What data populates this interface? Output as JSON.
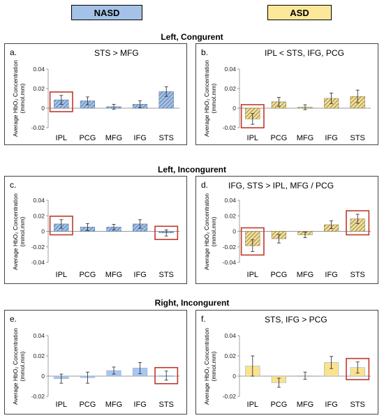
{
  "legend": [
    {
      "label": "NASD",
      "color": "#a4c2e8"
    },
    {
      "label": "ASD",
      "color": "#fde89a"
    }
  ],
  "sections": [
    "Left, Congurent",
    "Left, Incongurent",
    "Right, Incongurent"
  ],
  "colors": {
    "nasd_fill": "#a4c2e8",
    "nasd_hatch": "#4f6e9a",
    "asd_fill": "#f2df95",
    "asd_hatch": "#807140",
    "right_nasd_fill": "#a9c6ee",
    "right_asd_fill": "#fbe28e",
    "highlight": "#c0392b"
  },
  "chart_data": [
    {
      "type": "bar",
      "label": "a.",
      "title": "STS > MFG",
      "group": "NASD",
      "pattern": "hatch",
      "ylabel": "Average HbO₂ Concentration (mmol.mm)",
      "categories": [
        "IPL",
        "PCG",
        "MFG",
        "IFG",
        "STS"
      ],
      "values": [
        0.0085,
        0.0075,
        0.0015,
        0.004,
        0.017
      ],
      "errors": [
        0.0045,
        0.004,
        0.0025,
        0.0035,
        0.005
      ],
      "highlight": [
        "IPL"
      ],
      "ylim": [
        -0.02,
        0.04
      ],
      "yticks": [
        0.04,
        0.02,
        0,
        -0.02
      ],
      "ytick_labels": [
        "0.04",
        "0.02",
        "0",
        "-0.02"
      ]
    },
    {
      "type": "bar",
      "label": "b.",
      "title": "IPL < STS, IFG, PCG",
      "group": "ASD",
      "pattern": "hatch",
      "ylabel": "Average HbO₂ Concentration (mmol.mm)",
      "categories": [
        "IPL",
        "PCG",
        "MFG",
        "IFG",
        "STS"
      ],
      "values": [
        -0.011,
        0.0065,
        0.001,
        0.01,
        0.012
      ],
      "errors": [
        0.0055,
        0.0045,
        0.0025,
        0.0055,
        0.0065
      ],
      "highlight": [
        "IPL"
      ],
      "ylim": [
        -0.02,
        0.04
      ],
      "yticks": [
        0.04,
        0.02,
        0,
        -0.02
      ],
      "ytick_labels": [
        "0.04",
        "0.02",
        "0",
        "-0.02"
      ]
    },
    {
      "type": "bar",
      "label": "c.",
      "title": "",
      "group": "NASD",
      "pattern": "hatch",
      "ylabel": "Average HbO₂ Concentration (mmol.mm)",
      "categories": [
        "IPL",
        "PCG",
        "MFG",
        "IFG",
        "STS"
      ],
      "values": [
        0.0095,
        0.0055,
        0.0055,
        0.0095,
        -0.002
      ],
      "errors": [
        0.0055,
        0.0045,
        0.0035,
        0.0055,
        0.004
      ],
      "highlight": [
        "IPL",
        "STS"
      ],
      "ylim": [
        -0.04,
        0.04
      ],
      "yticks": [
        0.04,
        0.02,
        0,
        -0.02,
        -0.04
      ],
      "ytick_labels": [
        "0.04",
        "0.02",
        "0",
        "-0.02",
        "-0.04"
      ]
    },
    {
      "type": "bar",
      "label": "d.",
      "title": "IFG, STS > IPL, MFG / PCG",
      "group": "ASD",
      "pattern": "hatch",
      "ylabel": "Average HbO₂ Concentration (mmol.mm)",
      "categories": [
        "IPL",
        "PCG",
        "MFG",
        "IFG",
        "STS"
      ],
      "values": [
        -0.0185,
        -0.0095,
        -0.0045,
        0.0085,
        0.016
      ],
      "errors": [
        0.0075,
        0.0055,
        0.0035,
        0.005,
        0.006
      ],
      "highlight": [
        "IPL",
        "STS"
      ],
      "ylim": [
        -0.04,
        0.04
      ],
      "yticks": [
        0.04,
        0.02,
        0,
        -0.02,
        -0.04
      ],
      "ytick_labels": [
        "0.04",
        "0.02",
        "0",
        "-0.02",
        "-0.04"
      ]
    },
    {
      "type": "bar",
      "label": "e.",
      "title": "",
      "group": "NASD",
      "pattern": "solid",
      "ylabel": "Average HbO₂ Concentration (mmol.mm)",
      "categories": [
        "IPL",
        "PCG",
        "MFG",
        "IFG",
        "STS"
      ],
      "values": [
        -0.0025,
        -0.0015,
        0.0055,
        0.008,
        0.0005
      ],
      "errors": [
        0.0045,
        0.0055,
        0.0035,
        0.0055,
        0.0045
      ],
      "highlight": [
        "STS"
      ],
      "ylim": [
        -0.02,
        0.04
      ],
      "yticks": [
        0.04,
        0.02,
        0,
        -0.02
      ],
      "ytick_labels": [
        "0.04",
        "0.02",
        "0",
        "-0.02"
      ]
    },
    {
      "type": "bar",
      "label": "f.",
      "title": "STS, IFG > PCG",
      "group": "ASD",
      "pattern": "solid",
      "ylabel": "Average HbO₂ Concentration (mmol.mm)",
      "categories": [
        "IPL",
        "PCG",
        "MFG",
        "IFG",
        "STS"
      ],
      "values": [
        0.01,
        -0.0065,
        0.0005,
        0.0135,
        0.0085
      ],
      "errors": [
        0.01,
        0.0045,
        0.0035,
        0.006,
        0.0055
      ],
      "highlight": [
        "STS"
      ],
      "ylim": [
        -0.02,
        0.04
      ],
      "yticks": [
        0.04,
        0.02,
        0,
        -0.02
      ],
      "ytick_labels": [
        "0.04",
        "0.02",
        "0",
        "-0.02"
      ]
    }
  ]
}
